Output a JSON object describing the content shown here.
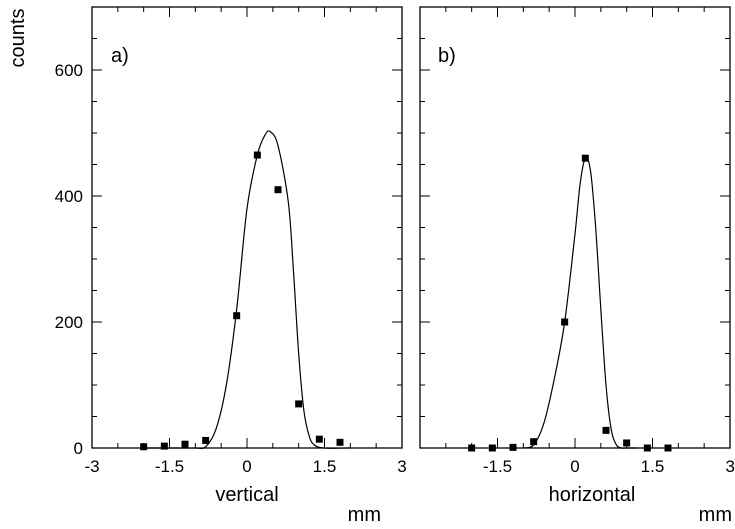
{
  "figure": {
    "ylabel": "counts",
    "units": "mm"
  },
  "chart_data": [
    {
      "type": "scatter",
      "panel_label": "a)",
      "xlabel": "vertical",
      "ylabel": "counts",
      "xlim": [
        -3,
        3
      ],
      "ylim": [
        0,
        700
      ],
      "xticks": [
        -3,
        -1.5,
        0,
        1.5,
        3
      ],
      "xtick_labels": [
        "-3",
        "-1.5",
        "0",
        "1.5",
        "3"
      ],
      "yticks": [
        0,
        200,
        400,
        600
      ],
      "ytick_labels": [
        "0",
        "200",
        "400",
        "600"
      ],
      "points": {
        "x": [
          -2.0,
          -1.6,
          -1.2,
          -0.8,
          -0.2,
          0.2,
          0.6,
          1.0,
          1.4,
          1.8
        ],
        "y": [
          2,
          3,
          6,
          12,
          210,
          465,
          410,
          70,
          14,
          9
        ]
      },
      "fit": {
        "x": [
          -2.0,
          -1.4,
          -1.0,
          -0.8,
          -0.6,
          -0.4,
          -0.2,
          0.0,
          0.2,
          0.35,
          0.45,
          0.6,
          0.8,
          0.9,
          1.0,
          1.1,
          1.2,
          1.3,
          1.5,
          2.0
        ],
        "y": [
          0,
          0,
          0,
          2,
          30,
          100,
          220,
          380,
          465,
          497,
          502,
          480,
          390,
          280,
          150,
          60,
          20,
          5,
          0,
          0
        ]
      },
      "grid": false
    },
    {
      "type": "scatter",
      "panel_label": "b)",
      "xlabel": "horizontal",
      "ylabel": "",
      "xlim": [
        -3,
        3
      ],
      "ylim": [
        0,
        700
      ],
      "xticks": [
        -3,
        -1.5,
        0,
        1.5,
        3
      ],
      "xtick_labels": [
        "",
        "-1.5",
        "0",
        "1.5",
        "3"
      ],
      "yticks": [
        0,
        200,
        400,
        600
      ],
      "ytick_labels": [],
      "points": {
        "x": [
          -2.0,
          -1.6,
          -1.2,
          -0.8,
          -0.2,
          0.2,
          0.6,
          1.0,
          1.4,
          1.8
        ],
        "y": [
          0,
          0,
          1,
          10,
          200,
          460,
          28,
          8,
          0,
          0
        ]
      },
      "fit": {
        "x": [
          -1.0,
          -0.8,
          -0.6,
          -0.4,
          -0.2,
          0.0,
          0.1,
          0.2,
          0.3,
          0.4,
          0.5,
          0.6,
          0.7,
          0.8,
          0.9,
          1.0,
          1.2
        ],
        "y": [
          0,
          5,
          40,
          110,
          200,
          340,
          420,
          460,
          440,
          350,
          220,
          100,
          30,
          5,
          0,
          0,
          0
        ]
      },
      "grid": false
    }
  ]
}
